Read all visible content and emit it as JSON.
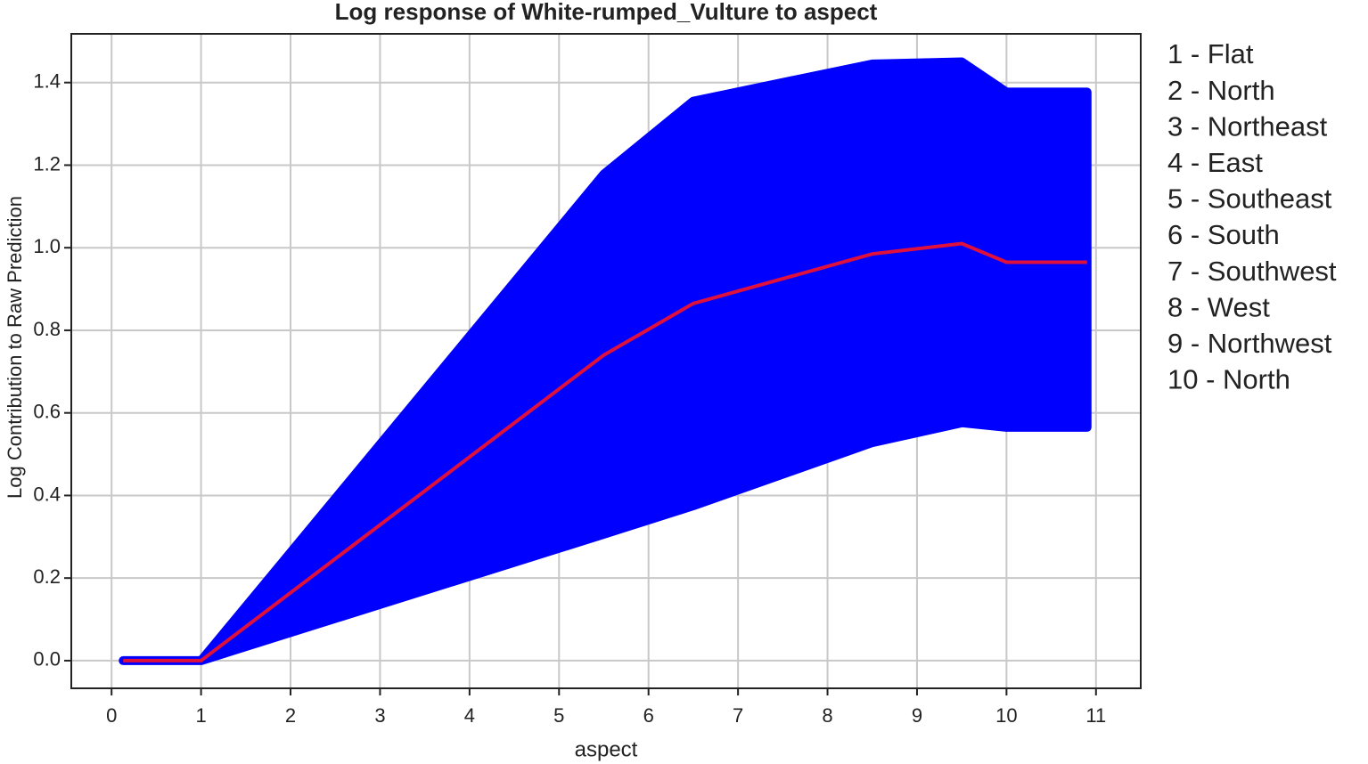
{
  "chart_data": {
    "type": "line",
    "title": "Log response of White-rumped_Vulture to aspect",
    "x_label": "aspect",
    "y_label": "Log Contribution to Raw Prediction",
    "x": [
      0.13,
      1,
      5.5,
      6.5,
      8.5,
      9.5,
      10,
      10.9
    ],
    "series": [
      {
        "color": "#e0103c",
        "values": [
          0,
          0,
          0.74,
          0.865,
          0.985,
          1.01,
          0.965,
          0.965
        ]
      }
    ],
    "band": {
      "color": "#0000ff",
      "upper": [
        0,
        0,
        1.178,
        1.355,
        1.445,
        1.45,
        1.377,
        1.377
      ],
      "lower": [
        0,
        0,
        0.306,
        0.375,
        0.528,
        0.576,
        0.565,
        0.565
      ]
    },
    "xlim": [
      -0.45,
      11.5
    ],
    "ylim": [
      -0.067,
      1.518
    ],
    "xticks": [
      0,
      1,
      2,
      3,
      4,
      5,
      6,
      7,
      8,
      9,
      10,
      11
    ],
    "yticks": [
      {
        "value": 0,
        "label": "0.0"
      },
      0.2,
      0.4,
      0.6,
      0.8,
      {
        "value": 1,
        "label": "1.0"
      },
      1.2,
      1.4
    ],
    "grid": true,
    "annotations": [
      "1 - Flat",
      "2 - North",
      "3 - Northeast",
      "4 - East",
      "5 - Southeast",
      "6 - South",
      "7 - Southwest",
      "8 - West",
      "9 - Northwest",
      "10 - North"
    ]
  }
}
